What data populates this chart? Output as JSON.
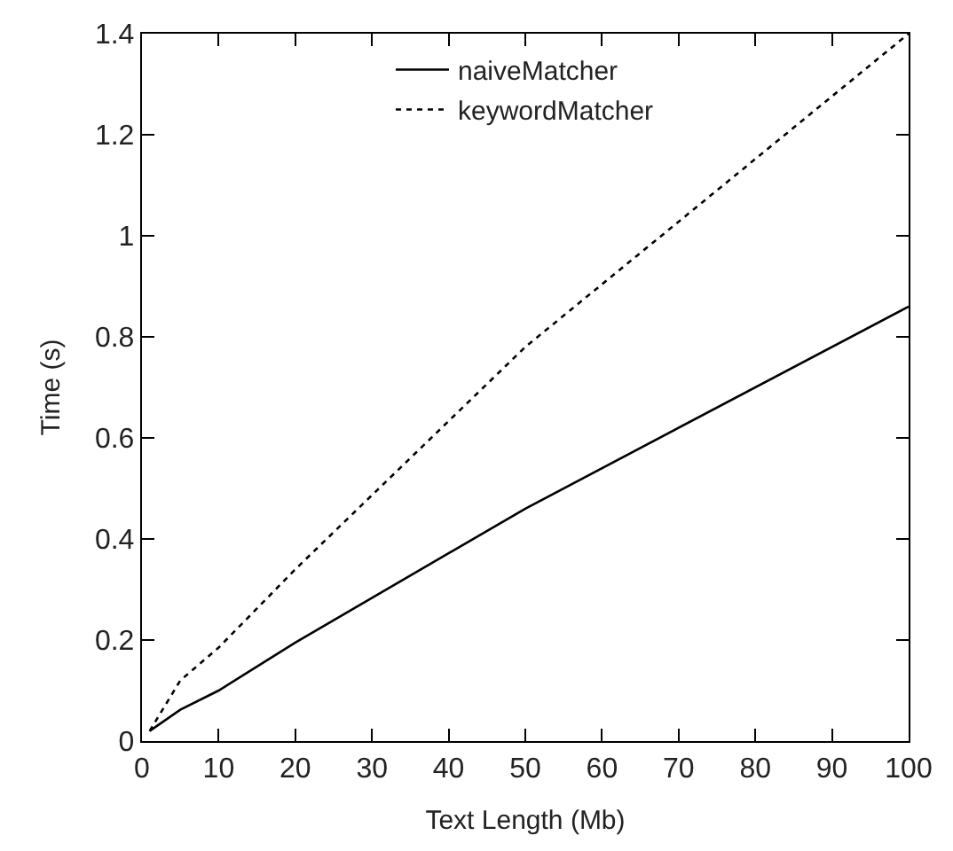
{
  "chart_data": {
    "type": "line",
    "xlabel": "Text Length (Mb)",
    "ylabel": "Time (s)",
    "xlim": [
      0,
      100
    ],
    "xticks": [
      0,
      10,
      20,
      30,
      40,
      50,
      60,
      70,
      80,
      90,
      100
    ],
    "ylim": [
      0,
      1.4
    ],
    "yticks": [
      0,
      0.2,
      0.4,
      0.6,
      0.8,
      1,
      1.2,
      1.4
    ],
    "x": [
      1,
      5,
      10,
      20,
      50,
      100
    ],
    "series": [
      {
        "name": "naiveMatcher",
        "color": "#000000",
        "line_style": "solid",
        "values": [
          0.02,
          0.062,
          0.1,
          0.195,
          0.46,
          0.86
        ]
      },
      {
        "name": "keywordMatcher",
        "color": "#000000",
        "line_style": "dotted",
        "values": [
          0.02,
          0.12,
          0.185,
          0.34,
          0.78,
          1.4
        ]
      }
    ],
    "legend": "top",
    "marker": "none"
  }
}
